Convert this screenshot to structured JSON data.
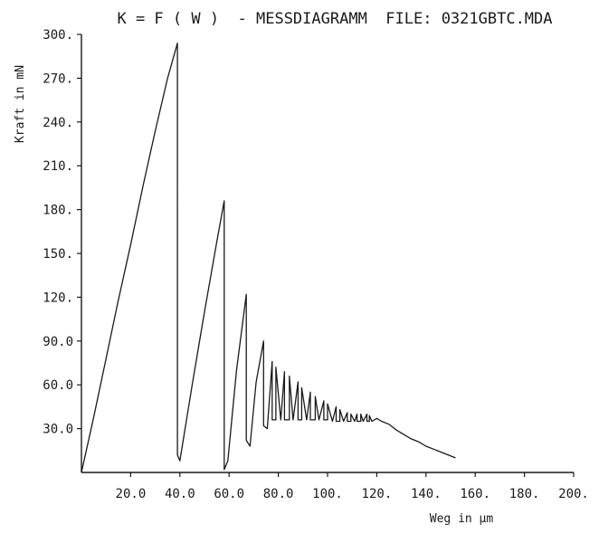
{
  "chart_data": {
    "type": "line",
    "title": "K = F ( W )  - MESSDIAGRAMM  FILE: 0321GBTC.MDA",
    "xlabel": "Weg in µm",
    "ylabel": "Kraft in mN",
    "xlim": [
      0,
      200
    ],
    "ylim": [
      0,
      300
    ],
    "x_ticks": [
      20,
      40,
      60,
      80,
      100,
      120,
      140,
      160,
      180,
      200
    ],
    "x_tick_labels": [
      "20.0",
      "40.0",
      "60.0",
      "80.0",
      "100.",
      "120.",
      "140.",
      "160.",
      "180.",
      "200."
    ],
    "y_ticks": [
      30,
      60,
      90,
      120,
      150,
      180,
      210,
      240,
      270,
      300
    ],
    "y_tick_labels": [
      "30.0",
      "60.0",
      "90.0",
      "120.",
      "150.",
      "180.",
      "210.",
      "240.",
      "270.",
      "300."
    ],
    "grid": false,
    "legend": "none",
    "line_color": "#1a1a1a",
    "series": [
      {
        "x": [
          0,
          5,
          10,
          15,
          20,
          25,
          30,
          35,
          39,
          39,
          40,
          40,
          45,
          50,
          55,
          58,
          58,
          59.5,
          59.5,
          63,
          67,
          67,
          68.5,
          68.5,
          71,
          74,
          74,
          75.5,
          75.5,
          77.5,
          77.5,
          79,
          79,
          81,
          81,
          82.5,
          82.5,
          84.5,
          84.5,
          86,
          86,
          88,
          88,
          89.5,
          89.5,
          91.5,
          91.5,
          93,
          93,
          95,
          95,
          96.5,
          96.5,
          98.5,
          98.5,
          100,
          100,
          102,
          102,
          103.5,
          103.5,
          105,
          105,
          106.5,
          106.5,
          108,
          108,
          109.5,
          109.5,
          111,
          111,
          112,
          112,
          113.5,
          113.5,
          114.5,
          114.5,
          116,
          116,
          117,
          117,
          118,
          118,
          120,
          122,
          125,
          128,
          131,
          134,
          137,
          140,
          143,
          146,
          149,
          152
        ],
        "y": [
          0,
          38,
          78,
          118,
          156,
          196,
          234,
          270,
          294,
          12,
          8,
          8,
          60,
          110,
          158,
          186,
          2,
          8,
          8,
          70,
          122,
          22,
          18,
          18,
          62,
          90,
          32,
          30,
          30,
          76,
          36,
          36,
          72,
          36,
          36,
          69,
          36,
          36,
          66,
          36,
          36,
          62,
          36,
          36,
          58,
          36,
          36,
          55,
          36,
          36,
          52,
          36,
          36,
          49,
          36,
          36,
          47,
          35,
          35,
          45,
          35,
          35,
          43,
          35,
          35,
          41,
          35,
          35,
          40,
          35,
          35,
          40,
          35,
          35,
          40,
          35,
          35,
          40,
          35,
          35,
          39,
          35,
          35,
          37,
          35,
          33,
          29,
          26,
          23,
          21,
          18,
          16,
          14,
          12,
          10
        ]
      }
    ]
  }
}
